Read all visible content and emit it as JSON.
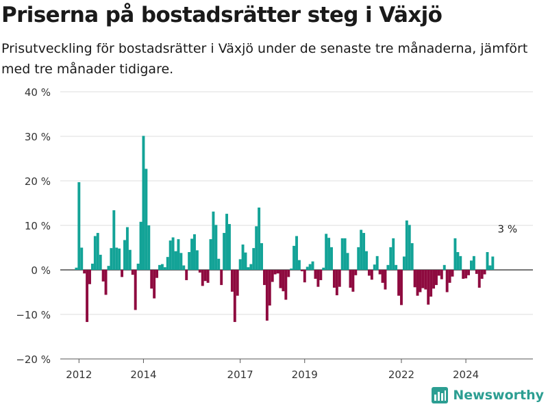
{
  "title": "Priserna på bostadsrätter steg i Växjö",
  "subtitle": "Prisutveckling för bostadsrätter i Växjö under de senaste tre månaderna, jämfört med tre månader tidigare.",
  "brand": {
    "name": "Newsworthy",
    "color": "#2c9e92"
  },
  "colors": {
    "positive": "#13a397",
    "negative": "#8e0a3f",
    "grid": "#dddddd",
    "zero_line": "#222222",
    "text": "#333333"
  },
  "chart_data": {
    "type": "bar",
    "title": "Priserna på bostadsrätter steg i Växjö",
    "xlabel": "",
    "ylabel": "",
    "unit": "%",
    "ylim": [
      -20,
      40
    ],
    "yticks": [
      -20,
      -10,
      0,
      10,
      20,
      30,
      40
    ],
    "ytick_labels": [
      "−20 %",
      "−10 %",
      "0 %",
      "10 %",
      "20 %",
      "30 %",
      "40 %"
    ],
    "xlim": [
      2011.42,
      2026.08
    ],
    "xticks": [
      2012,
      2014,
      2017,
      2019,
      2022,
      2024
    ],
    "xtick_labels": [
      "2012",
      "2014",
      "2017",
      "2019",
      "2022",
      "2024"
    ],
    "grid": true,
    "legend": "none",
    "annotation": {
      "text": "3 %",
      "x": 2025.12,
      "y": 3
    },
    "x_start": 2011.917,
    "x_step": 0.0833333,
    "values": [
      0.5,
      19.7,
      5,
      -0.8,
      -11.7,
      -3.2,
      1.4,
      7.6,
      8.3,
      3.4,
      -2.6,
      -5.6,
      0.9,
      4.9,
      13.4,
      5,
      4.8,
      -1.6,
      6.7,
      9.6,
      4.5,
      -1.1,
      -9,
      1.4,
      10.8,
      30.1,
      22.7,
      10,
      -4.2,
      -6.4,
      -1.8,
      1.1,
      1.3,
      0.6,
      2.9,
      6.6,
      7.3,
      4.2,
      6.9,
      3.8,
      1,
      -2.3,
      4,
      7,
      8,
      4.4,
      -0.6,
      -3.6,
      -2.5,
      -2.9,
      6.9,
      13.1,
      10.1,
      2.5,
      -3.4,
      8.3,
      12.6,
      10.3,
      -4.9,
      -11.7,
      -5.8,
      2.4,
      5.7,
      3.9,
      0.6,
      1.3,
      4.9,
      9.8,
      14,
      6,
      -3.4,
      -11.4,
      -8,
      -2.7,
      -1,
      -0.8,
      -4.1,
      -4.8,
      -6.7,
      -1.6,
      0.3,
      5.4,
      7.6,
      2.2,
      -0.3,
      -2.8,
      0.7,
      1.3,
      1.9,
      -2,
      -3.8,
      -2.3,
      0.5,
      8.1,
      7.2,
      5.1,
      -4,
      -5.7,
      -3.8,
      7.1,
      7.1,
      3.8,
      -4,
      -4.9,
      -1.2,
      5.1,
      9,
      8.3,
      4.2,
      -1.3,
      -2.2,
      1.2,
      3.1,
      -1,
      -2.9,
      -4.4,
      1.1,
      5.1,
      7.1,
      1.1,
      -5.8,
      -7.9,
      3,
      11.1,
      10.1,
      6,
      -3.9,
      -5.8,
      -5,
      -4.1,
      -4.4,
      -7.8,
      -6,
      -4.2,
      -3.4,
      -1.3,
      -2.1,
      1.1,
      -5,
      -2.9,
      -1.5,
      7.1,
      4,
      3.1,
      -2,
      -1.9,
      -1.2,
      2.1,
      3.1,
      -0.9,
      -4,
      -2,
      -1,
      4,
      1,
      3
    ]
  }
}
